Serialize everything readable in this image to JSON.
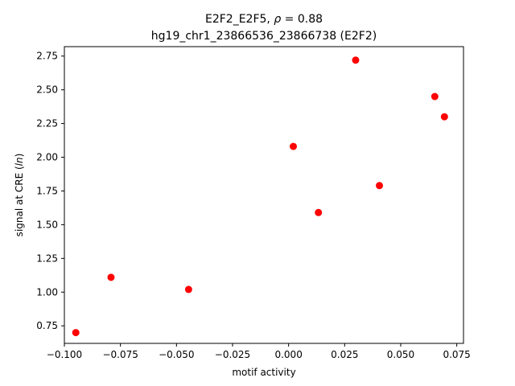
{
  "chart_data": {
    "type": "scatter",
    "title_line1_prefix": "E2F2_E2F5, ",
    "title_line1_rho": "ρ",
    "title_line1_suffix": " = 0.88",
    "title_line2": "hg19_chr1_23866536_23866738 (E2F2)",
    "xlabel": "motif activity",
    "ylabel_prefix": "signal at CRE (",
    "ylabel_italic": "ln",
    "ylabel_suffix": ")",
    "xlim": [
      -0.1,
      0.078
    ],
    "ylim": [
      0.62,
      2.82
    ],
    "xticks": [
      -0.1,
      -0.075,
      -0.05,
      -0.025,
      0.0,
      0.025,
      0.05,
      0.075
    ],
    "xtick_labels": [
      "−0.100",
      "−0.075",
      "−0.050",
      "−0.025",
      "0.000",
      "0.025",
      "0.050",
      "0.075"
    ],
    "yticks": [
      0.75,
      1.0,
      1.25,
      1.5,
      1.75,
      2.0,
      2.25,
      2.5,
      2.75
    ],
    "ytick_labels": [
      "0.75",
      "1.00",
      "1.25",
      "1.50",
      "1.75",
      "2.00",
      "2.25",
      "2.50",
      "2.75"
    ],
    "grid": false,
    "marker_color": "#ff0000",
    "points": [
      {
        "x": -0.0949,
        "y": 0.7
      },
      {
        "x": -0.0792,
        "y": 1.11
      },
      {
        "x": -0.0446,
        "y": 1.02
      },
      {
        "x": 0.0021,
        "y": 2.08
      },
      {
        "x": 0.0133,
        "y": 1.59
      },
      {
        "x": 0.0299,
        "y": 2.72
      },
      {
        "x": 0.0405,
        "y": 1.79
      },
      {
        "x": 0.0652,
        "y": 2.45
      },
      {
        "x": 0.0695,
        "y": 2.3
      }
    ]
  }
}
